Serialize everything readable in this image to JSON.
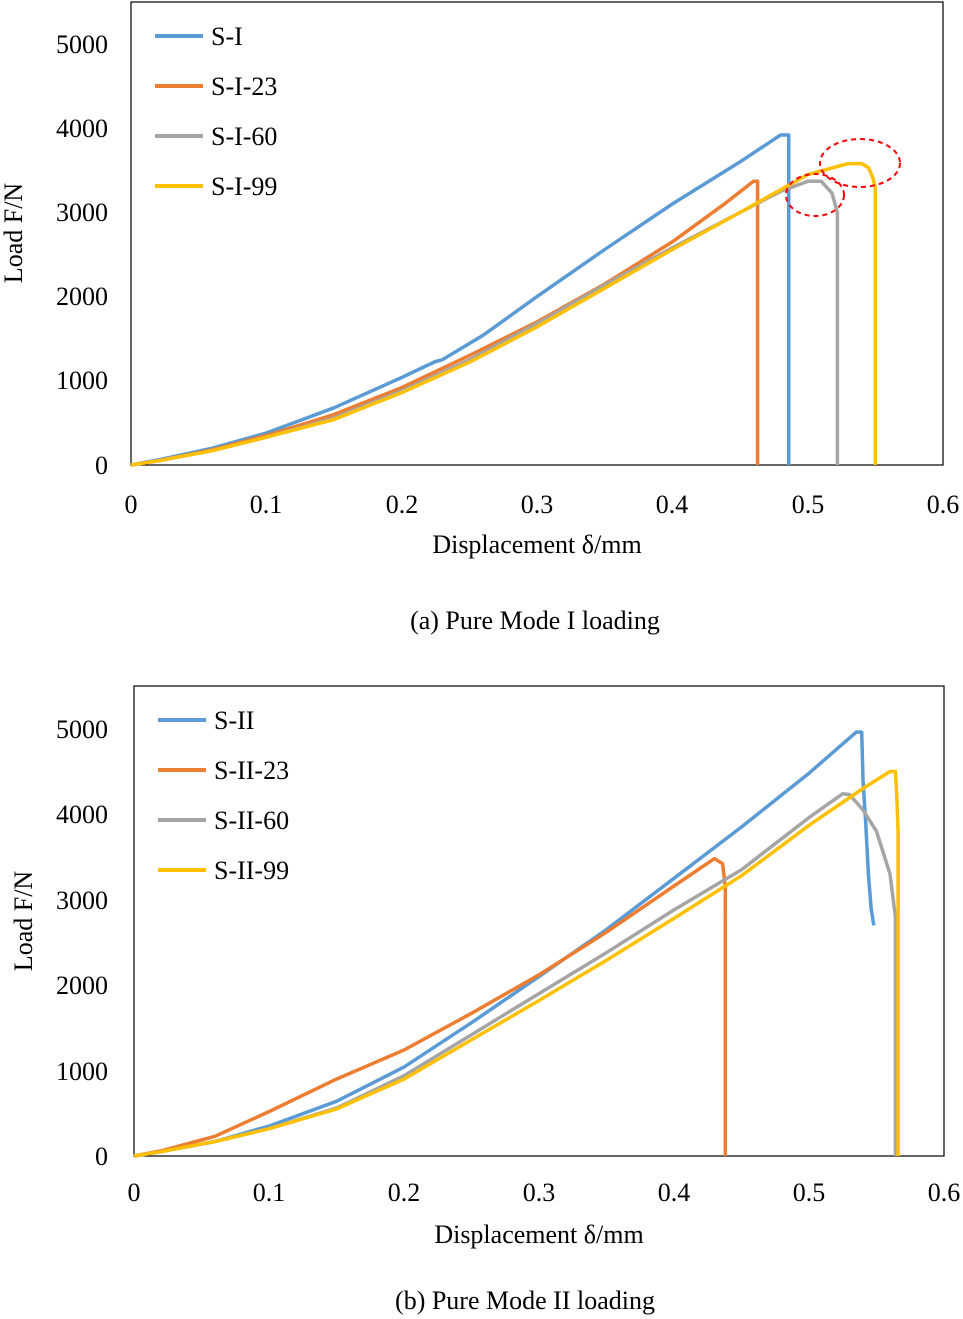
{
  "chart_data": [
    {
      "type": "line",
      "caption": "(a) Pure Mode I loading",
      "xlabel": "Displacement δ/mm",
      "ylabel": "Load F/N",
      "xlim": [
        0,
        0.6
      ],
      "ylim": [
        0,
        5500
      ],
      "xticks": [
        "0",
        "0.1",
        "0.2",
        "0.3",
        "0.4",
        "0.5",
        "0.6"
      ],
      "yticks": [
        "0",
        "1000",
        "2000",
        "3000",
        "4000",
        "5000"
      ],
      "legend_position": "top-left",
      "annotations": [
        "dashed red ellipse around S-I-60 peak",
        "dashed red ellipse around S-I-99 peak"
      ],
      "series": [
        {
          "name": "S-I",
          "color": "#5B9BD5",
          "x": [
            0,
            0.02,
            0.06,
            0.1,
            0.15,
            0.2,
            0.225,
            0.23,
            0.26,
            0.3,
            0.35,
            0.4,
            0.45,
            0.48,
            0.486,
            0.486
          ],
          "y": [
            0,
            60,
            200,
            380,
            680,
            1040,
            1230,
            1250,
            1540,
            2000,
            2560,
            3100,
            3600,
            3920,
            3920,
            0
          ]
        },
        {
          "name": "S-I-23",
          "color": "#ED7D31",
          "x": [
            0,
            0.02,
            0.06,
            0.1,
            0.15,
            0.2,
            0.25,
            0.3,
            0.35,
            0.4,
            0.44,
            0.46,
            0.463,
            0.463
          ],
          "y": [
            0,
            50,
            180,
            350,
            600,
            920,
            1300,
            1700,
            2150,
            2650,
            3120,
            3370,
            3370,
            0
          ]
        },
        {
          "name": "S-I-60",
          "color": "#A5A5A5",
          "x": [
            0,
            0.02,
            0.06,
            0.1,
            0.15,
            0.2,
            0.25,
            0.3,
            0.35,
            0.4,
            0.45,
            0.48,
            0.5,
            0.51,
            0.518,
            0.522,
            0.522
          ],
          "y": [
            0,
            50,
            170,
            330,
            560,
            880,
            1250,
            1680,
            2140,
            2580,
            3000,
            3250,
            3370,
            3370,
            3230,
            3000,
            0
          ]
        },
        {
          "name": "S-I-99",
          "color": "#FFC000",
          "x": [
            0,
            0.02,
            0.06,
            0.1,
            0.15,
            0.2,
            0.25,
            0.3,
            0.35,
            0.4,
            0.45,
            0.5,
            0.53,
            0.54,
            0.545,
            0.548,
            0.55,
            0.55
          ],
          "y": [
            0,
            50,
            170,
            330,
            540,
            860,
            1220,
            1640,
            2100,
            2560,
            3000,
            3450,
            3580,
            3580,
            3530,
            3420,
            3300,
            0
          ]
        }
      ]
    },
    {
      "type": "line",
      "caption": "(b) Pure Mode II loading",
      "xlabel": "Displacement δ/mm",
      "ylabel": "Load F/N",
      "xlim": [
        0,
        0.6
      ],
      "ylim": [
        0,
        5500
      ],
      "xticks": [
        "0",
        "0.1",
        "0.2",
        "0.3",
        "0.4",
        "0.5",
        "0.6"
      ],
      "yticks": [
        "0",
        "1000",
        "2000",
        "3000",
        "4000",
        "5000"
      ],
      "legend_position": "top-left",
      "series": [
        {
          "name": "S-II",
          "color": "#5B9BD5",
          "x": [
            0,
            0.02,
            0.06,
            0.1,
            0.15,
            0.2,
            0.25,
            0.3,
            0.35,
            0.4,
            0.45,
            0.5,
            0.535,
            0.539,
            0.54,
            0.542,
            0.544,
            0.546,
            0.548
          ],
          "y": [
            0,
            50,
            170,
            350,
            640,
            1040,
            1560,
            2100,
            2650,
            3250,
            3850,
            4480,
            4960,
            4960,
            4400,
            3900,
            3300,
            2900,
            2700
          ]
        },
        {
          "name": "S-II-23",
          "color": "#ED7D31",
          "x": [
            0,
            0.02,
            0.06,
            0.1,
            0.15,
            0.2,
            0.25,
            0.3,
            0.35,
            0.4,
            0.43,
            0.436,
            0.438,
            0.438
          ],
          "y": [
            0,
            60,
            230,
            520,
            900,
            1240,
            1670,
            2120,
            2620,
            3160,
            3480,
            3420,
            3150,
            0
          ]
        },
        {
          "name": "S-II-60",
          "color": "#A5A5A5",
          "x": [
            0,
            0.02,
            0.06,
            0.1,
            0.15,
            0.2,
            0.25,
            0.3,
            0.35,
            0.4,
            0.45,
            0.5,
            0.525,
            0.53,
            0.54,
            0.55,
            0.56,
            0.564,
            0.564
          ],
          "y": [
            0,
            50,
            170,
            320,
            560,
            940,
            1420,
            1900,
            2380,
            2880,
            3350,
            3960,
            4240,
            4230,
            4050,
            3800,
            3300,
            2800,
            0
          ]
        },
        {
          "name": "S-II-99",
          "color": "#FFC000",
          "x": [
            0,
            0.02,
            0.06,
            0.1,
            0.15,
            0.2,
            0.25,
            0.3,
            0.35,
            0.4,
            0.45,
            0.5,
            0.54,
            0.56,
            0.564,
            0.565,
            0.566,
            0.566
          ],
          "y": [
            0,
            50,
            170,
            320,
            550,
            900,
            1360,
            1820,
            2290,
            2780,
            3280,
            3870,
            4300,
            4500,
            4500,
            4200,
            3800,
            0
          ]
        }
      ]
    }
  ]
}
